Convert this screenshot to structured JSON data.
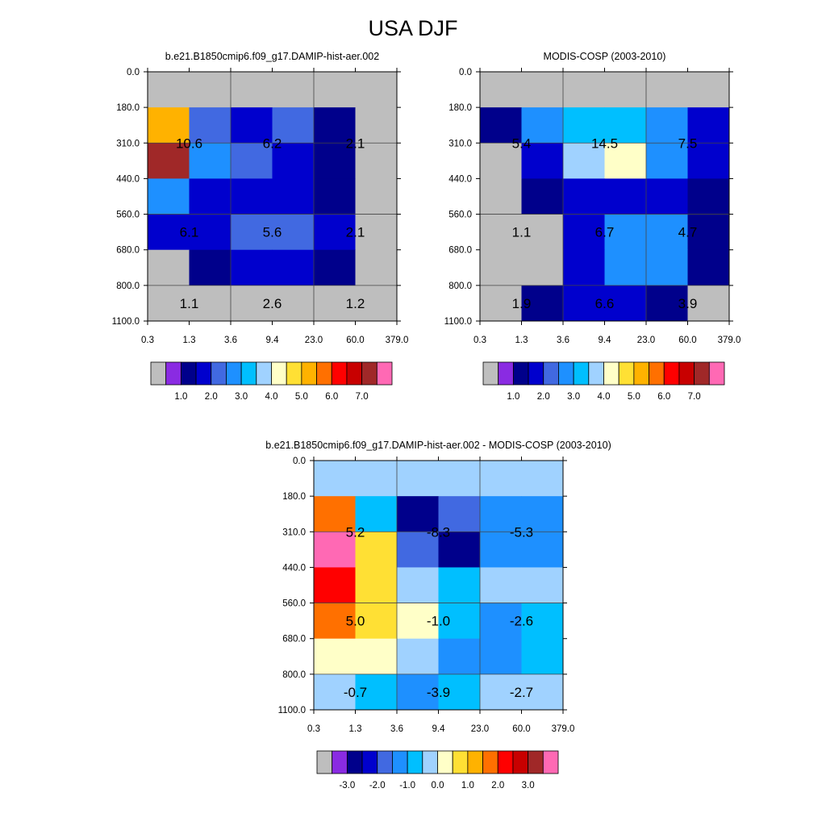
{
  "title": "USA DJF",
  "chart_data": [
    {
      "type": "heatmap",
      "title": "b.e21.B1850cmip6.f09_g17.DAMIP-hist-aer.002",
      "x_ticks": [
        "0.3",
        "1.3",
        "3.6",
        "9.4",
        "23.0",
        "60.0",
        "379.0"
      ],
      "y_ticks": [
        "0.0",
        "180.0",
        "310.0",
        "440.0",
        "560.0",
        "680.0",
        "800.0",
        "1100.0"
      ],
      "grid": [
        [
          0,
          0,
          0,
          0,
          0,
          0
        ],
        [
          5.0,
          2.4,
          1.9,
          2.0,
          1.0,
          0.0
        ],
        [
          8.0,
          2.8,
          2.1,
          1.9,
          1.0,
          0.0
        ],
        [
          2.7,
          1.9,
          1.9,
          1.9,
          1.0,
          0.0
        ],
        [
          1.8,
          1.8,
          2.0,
          2.0,
          1.8,
          0.0
        ],
        [
          0.0,
          1.0,
          1.8,
          1.8,
          1.0,
          0.0
        ],
        [
          0.0,
          0.0,
          0.0,
          0.0,
          0.0,
          0.0
        ]
      ],
      "annotations": [
        {
          "text": "10.6",
          "col": 1,
          "row": 1.5
        },
        {
          "text": "6.2",
          "col": 3,
          "row": 1.5
        },
        {
          "text": "2.1",
          "col": 5,
          "row": 1.5
        },
        {
          "text": "6.1",
          "col": 1,
          "row": 4
        },
        {
          "text": "5.6",
          "col": 3,
          "row": 4
        },
        {
          "text": "2.1",
          "col": 5,
          "row": 4
        },
        {
          "text": "1.1",
          "col": 1,
          "row": 6
        },
        {
          "text": "2.6",
          "col": 3,
          "row": 6
        },
        {
          "text": "1.2",
          "col": 5,
          "row": 6
        }
      ],
      "colorbar": {
        "levels": [
          0.5,
          1.0,
          1.5,
          2.0,
          2.5,
          3.0,
          3.5,
          4.0,
          4.5,
          5.0,
          5.5,
          6.0,
          6.5,
          7.0
        ],
        "labels": [
          "1.0",
          "2.0",
          "3.0",
          "4.0",
          "5.0",
          "6.0",
          "7.0"
        ],
        "label_positions": [
          1.0,
          2.0,
          3.0,
          4.0,
          5.0,
          6.0,
          7.0
        ]
      }
    },
    {
      "type": "heatmap",
      "title": "MODIS-COSP (2003-2010)",
      "x_ticks": [
        "0.3",
        "1.3",
        "3.6",
        "9.4",
        "23.0",
        "60.0",
        "379.0"
      ],
      "y_ticks": [
        "0.0",
        "180.0",
        "310.0",
        "440.0",
        "560.0",
        "680.0",
        "800.0",
        "1100.0"
      ],
      "grid": [
        [
          0,
          0,
          0,
          0,
          0,
          0
        ],
        [
          1.0,
          2.7,
          3.4,
          3.4,
          2.7,
          1.8
        ],
        [
          0.0,
          1.9,
          3.7,
          4.3,
          2.7,
          1.8
        ],
        [
          0.0,
          1.0,
          1.8,
          1.9,
          1.8,
          1.0
        ],
        [
          0.0,
          0.0,
          1.8,
          2.7,
          2.7,
          1.0
        ],
        [
          0.0,
          0.0,
          1.8,
          2.7,
          2.7,
          1.0
        ],
        [
          0.0,
          1.0,
          1.9,
          1.8,
          1.0,
          0.0
        ]
      ],
      "annotations": [
        {
          "text": "5.4",
          "col": 1,
          "row": 1.5
        },
        {
          "text": "14.5",
          "col": 3,
          "row": 1.5
        },
        {
          "text": "7.5",
          "col": 5,
          "row": 1.5
        },
        {
          "text": "1.1",
          "col": 1,
          "row": 4
        },
        {
          "text": "6.7",
          "col": 3,
          "row": 4
        },
        {
          "text": "4.7",
          "col": 5,
          "row": 4
        },
        {
          "text": "1.9",
          "col": 1,
          "row": 6
        },
        {
          "text": "6.6",
          "col": 3,
          "row": 6
        },
        {
          "text": "3.9",
          "col": 5,
          "row": 6
        }
      ],
      "colorbar": {
        "levels": [
          0.5,
          1.0,
          1.5,
          2.0,
          2.5,
          3.0,
          3.5,
          4.0,
          4.5,
          5.0,
          5.5,
          6.0,
          6.5,
          7.0
        ],
        "labels": [
          "1.0",
          "2.0",
          "3.0",
          "4.0",
          "5.0",
          "6.0",
          "7.0"
        ],
        "label_positions": [
          1.0,
          2.0,
          3.0,
          4.0,
          5.0,
          6.0,
          7.0
        ]
      }
    },
    {
      "type": "heatmap",
      "title": "b.e21.B1850cmip6.f09_g17.DAMIP-hist-aer.002 - MODIS-COSP (2003-2010)",
      "x_ticks": [
        "0.3",
        "1.3",
        "3.6",
        "9.4",
        "23.0",
        "60.0",
        "379.0"
      ],
      "y_ticks": [
        "0.0",
        "180.0",
        "310.0",
        "440.0",
        "560.0",
        "680.0",
        "800.0",
        "1100.0"
      ],
      "grid": [
        [
          -0.2,
          -0.2,
          -0.2,
          -0.2,
          -0.2,
          -0.2
        ],
        [
          1.7,
          -0.7,
          -2.7,
          -1.9,
          -1.2,
          -1.2
        ],
        [
          4.0,
          0.7,
          -1.8,
          -2.8,
          -1.2,
          -1.2
        ],
        [
          2.2,
          0.7,
          -0.2,
          -0.7,
          -0.2,
          -0.2
        ],
        [
          1.7,
          0.7,
          0.2,
          -0.7,
          -1.2,
          -0.7
        ],
        [
          0.2,
          0.2,
          -0.2,
          -1.2,
          -1.2,
          -0.7
        ],
        [
          -0.2,
          -0.7,
          -1.2,
          -0.7,
          -0.2,
          -0.2
        ]
      ],
      "annotations": [
        {
          "text": "5.2",
          "col": 1,
          "row": 1.5
        },
        {
          "text": "-8.3",
          "col": 3,
          "row": 1.5
        },
        {
          "text": "-5.3",
          "col": 5,
          "row": 1.5
        },
        {
          "text": "5.0",
          "col": 1,
          "row": 4
        },
        {
          "text": "-1.0",
          "col": 3,
          "row": 4
        },
        {
          "text": "-2.6",
          "col": 5,
          "row": 4
        },
        {
          "text": "-0.7",
          "col": 1,
          "row": 6
        },
        {
          "text": "-3.9",
          "col": 3,
          "row": 6
        },
        {
          "text": "-2.7",
          "col": 5,
          "row": 6
        }
      ],
      "colorbar": {
        "levels": [
          -3.5,
          -3.0,
          -2.5,
          -2.0,
          -1.5,
          -1.0,
          -0.5,
          0.0,
          0.5,
          1.0,
          1.5,
          2.0,
          2.5,
          3.0,
          3.5
        ],
        "labels": [
          "-3.0",
          "-2.0",
          "-1.0",
          "0.0",
          "1.0",
          "2.0",
          "3.0"
        ],
        "label_positions": [
          -3.0,
          -2.0,
          -1.0,
          0.0,
          1.0,
          2.0,
          3.0
        ]
      }
    }
  ],
  "colors": {
    "missing_gray": "#bebebe",
    "abs_palette": [
      "#8a2be2",
      "#00008b",
      "#0000cd",
      "#4169e1",
      "#1e90ff",
      "#00bfff",
      "#a0d2ff",
      "#ffffc8",
      "#ffe034",
      "#ffb200",
      "#ff7000",
      "#ff0000",
      "#c80000",
      "#a02828",
      "#ff69b4"
    ],
    "diff_palette": [
      "#bebebe",
      "#8a2be2",
      "#00008b",
      "#0000cd",
      "#4169e1",
      "#1e90ff",
      "#00bfff",
      "#a0d2ff",
      "#ffffc8",
      "#ffe034",
      "#ffb200",
      "#ff7000",
      "#ff0000",
      "#c80000",
      "#a02828",
      "#ff69b4"
    ]
  }
}
